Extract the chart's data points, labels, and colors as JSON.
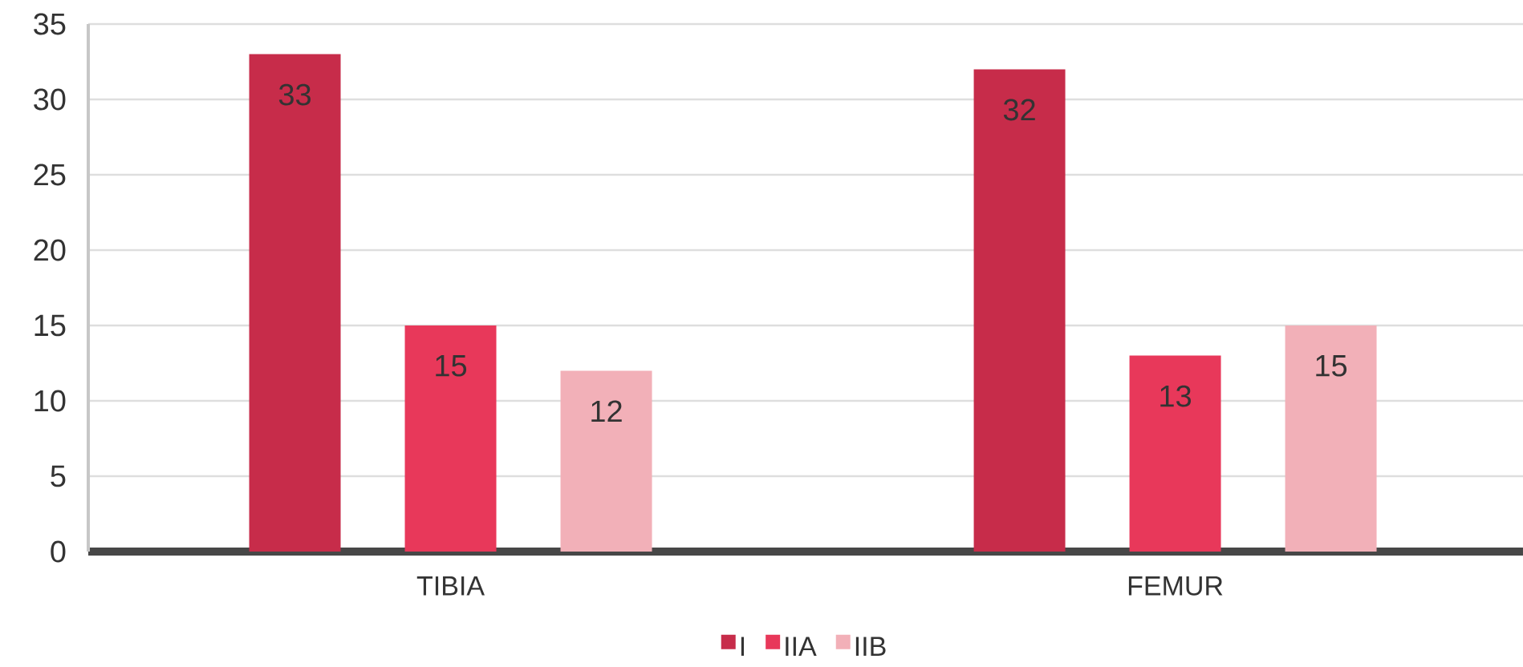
{
  "chart_data": {
    "type": "bar",
    "categories": [
      "TIBIA",
      "FEMUR"
    ],
    "series": [
      {
        "name": "I",
        "color": "#c72c4a",
        "values": [
          33,
          32
        ]
      },
      {
        "name": "IIA",
        "color": "#e8385a",
        "values": [
          15,
          13
        ]
      },
      {
        "name": "IIB",
        "color": "#f2b0b8",
        "values": [
          12,
          15
        ]
      }
    ],
    "ylim": [
      0,
      35
    ],
    "yticks": [
      0,
      5,
      10,
      15,
      20,
      25,
      30,
      35
    ],
    "grid": "y",
    "legend": "bottom",
    "data_labels": true
  }
}
